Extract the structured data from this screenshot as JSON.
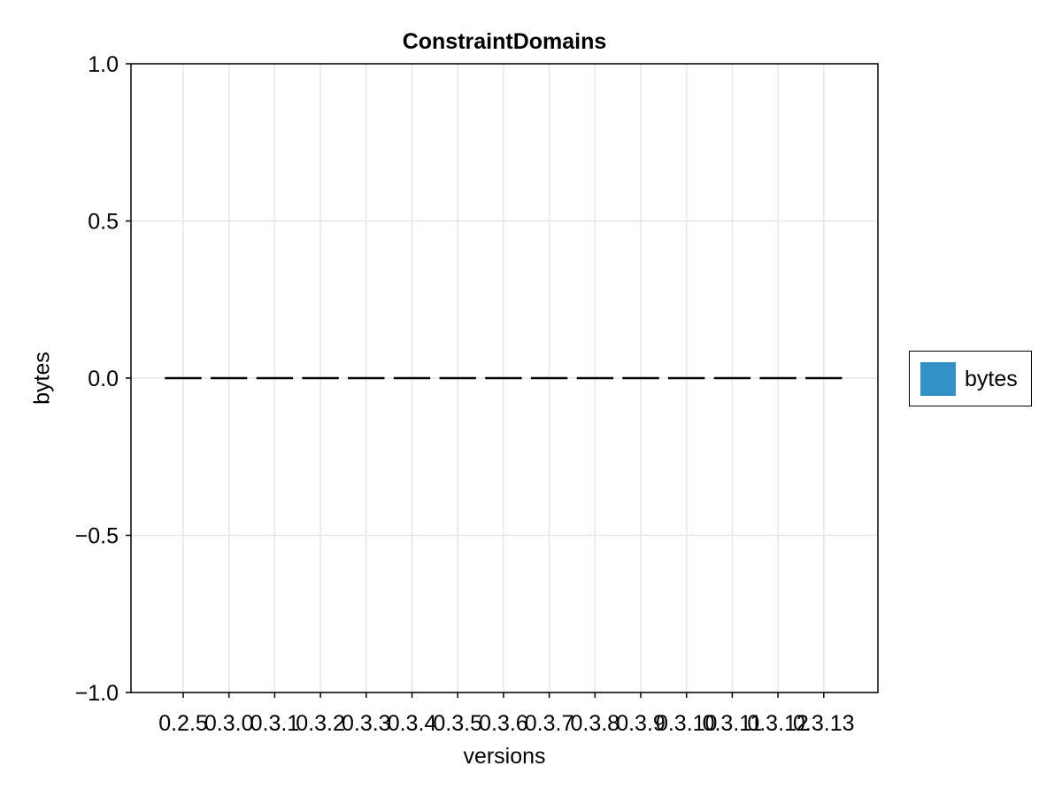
{
  "chart_data": {
    "type": "bar",
    "title": "ConstraintDomains",
    "xlabel": "versions",
    "ylabel": "bytes",
    "categories": [
      "0.2.5",
      "0.3.0",
      "0.3.1",
      "0.3.2",
      "0.3.3",
      "0.3.4",
      "0.3.5",
      "0.3.6",
      "0.3.7",
      "0.3.8",
      "0.3.9",
      "0.3.10",
      "0.3.11",
      "0.3.12",
      "0.3.13"
    ],
    "series": [
      {
        "name": "bytes",
        "values": [
          0,
          0,
          0,
          0,
          0,
          0,
          0,
          0,
          0,
          0,
          0,
          0,
          0,
          0,
          0
        ]
      }
    ],
    "ylim": [
      -1.0,
      1.0
    ],
    "yticks": [
      "−1.0",
      "−0.5",
      "0.0",
      "0.5",
      "1.0"
    ],
    "ytick_values": [
      -1.0,
      -0.5,
      0.0,
      0.5,
      1.0
    ],
    "grid": true,
    "legend_position": "right",
    "colors": {
      "series": "#3491c5",
      "zero_line": "#000000",
      "grid": "#e6e6e6"
    }
  }
}
